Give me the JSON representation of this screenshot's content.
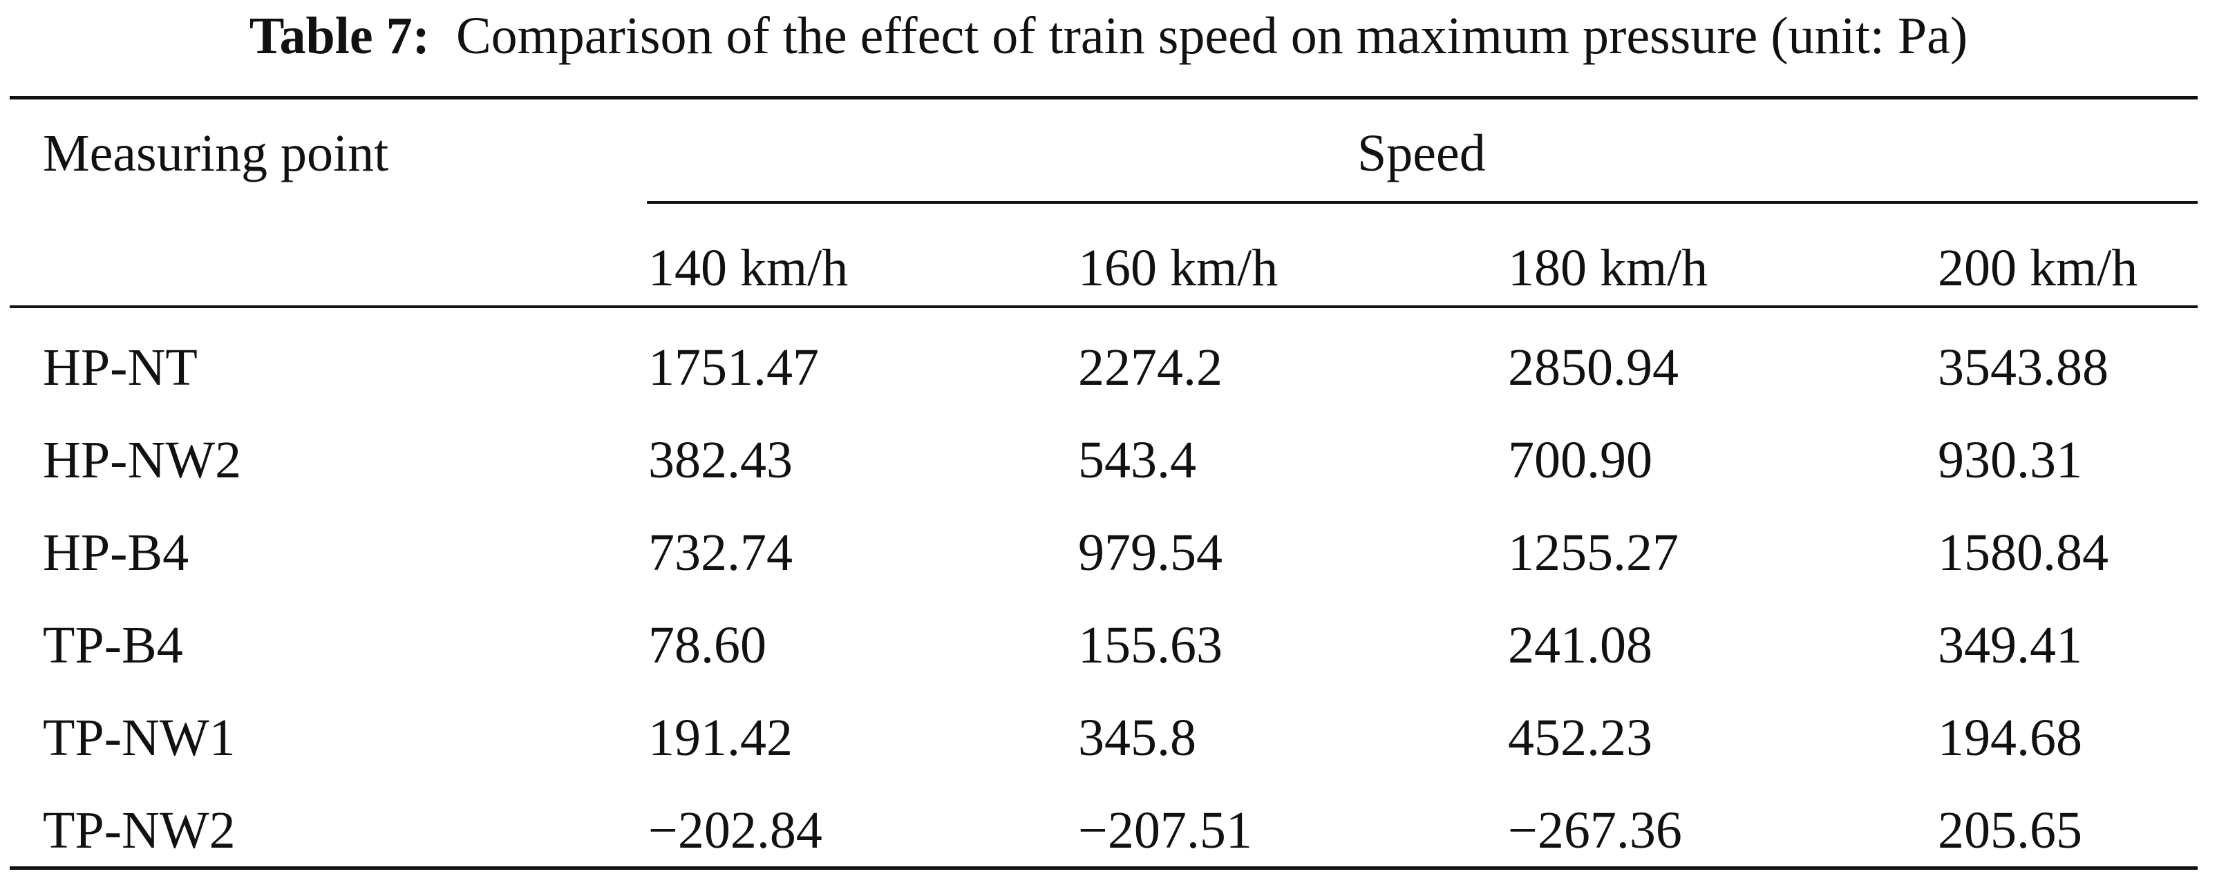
{
  "caption": {
    "label": "Table 7:",
    "text": "Comparison of the effect of train speed on maximum pressure (unit: Pa)"
  },
  "table": {
    "row_header": "Measuring point",
    "group_header": "Speed",
    "columns": [
      "140 km/h",
      "160 km/h",
      "180 km/h",
      "200 km/h"
    ],
    "rows": [
      {
        "point": "HP-NT",
        "values": [
          "1751.47",
          "2274.2",
          "2850.94",
          "3543.88"
        ]
      },
      {
        "point": "HP-NW2",
        "values": [
          "382.43",
          "543.4",
          "700.90",
          "930.31"
        ]
      },
      {
        "point": "HP-B4",
        "values": [
          "732.74",
          "979.54",
          "1255.27",
          "1580.84"
        ]
      },
      {
        "point": "TP-B4",
        "values": [
          "78.60",
          "155.63",
          "241.08",
          "349.41"
        ]
      },
      {
        "point": "TP-NW1",
        "values": [
          "191.42",
          "345.8",
          "452.23",
          "194.68"
        ]
      },
      {
        "point": "TP-NW2",
        "values": [
          "−202.84",
          "−207.51",
          "−267.36",
          "205.65"
        ]
      }
    ]
  }
}
